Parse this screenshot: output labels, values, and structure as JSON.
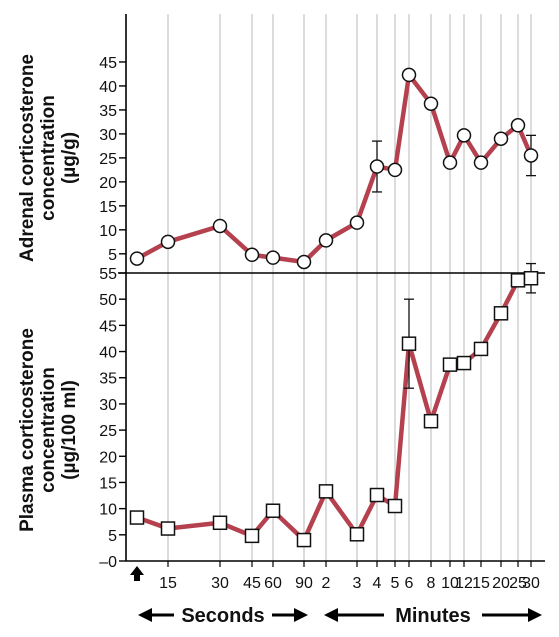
{
  "chart_data": [
    {
      "type": "line",
      "panel": "top",
      "ylabel_lines": [
        "Adrenal corticosterone",
        "concentration",
        "(µg/g)"
      ],
      "yticks": [
        5,
        10,
        15,
        20,
        25,
        30,
        35,
        40,
        45
      ],
      "ylim": [
        1,
        55
      ],
      "series": [
        {
          "marker": "circle",
          "color": "#b5414f",
          "points": [
            {
              "x": "0",
              "y": 4
            },
            {
              "x": "15",
              "y": 7.5
            },
            {
              "x": "30",
              "y": 10.8
            },
            {
              "x": "45",
              "y": 4.8
            },
            {
              "x": "60",
              "y": 4.2
            },
            {
              "x": "90",
              "y": 3.3
            },
            {
              "x": "2",
              "y": 7.8
            },
            {
              "x": "3",
              "y": 11.5
            },
            {
              "x": "4",
              "y": 23.2,
              "err": 5.3
            },
            {
              "x": "5",
              "y": 22.5
            },
            {
              "x": "6",
              "y": 42.3
            },
            {
              "x": "8",
              "y": 36.3
            },
            {
              "x": "10",
              "y": 24
            },
            {
              "x": "12",
              "y": 29.7
            },
            {
              "x": "15m",
              "y": 24
            },
            {
              "x": "20",
              "y": 29
            },
            {
              "x": "25",
              "y": 31.8
            },
            {
              "x": "30",
              "y": 25.5,
              "err": 4.2
            }
          ]
        }
      ]
    },
    {
      "type": "line",
      "panel": "bottom",
      "ylabel_lines": [
        "Plasma corticosterone",
        "concentration",
        "(µg/100 ml)"
      ],
      "yticks": [
        0,
        5,
        10,
        15,
        20,
        25,
        30,
        35,
        40,
        45,
        50,
        55
      ],
      "ytick_labels": [
        "–0",
        "5",
        "10",
        "15",
        "20",
        "25",
        "30",
        "35",
        "40",
        "45",
        "50",
        "55"
      ],
      "ylim": [
        0,
        55
      ],
      "series": [
        {
          "marker": "square",
          "color": "#b5414f",
          "points": [
            {
              "x": "0",
              "y": 8.3
            },
            {
              "x": "15",
              "y": 6.2
            },
            {
              "x": "30",
              "y": 7.3
            },
            {
              "x": "45",
              "y": 4.8
            },
            {
              "x": "60",
              "y": 9.6
            },
            {
              "x": "90",
              "y": 4
            },
            {
              "x": "2",
              "y": 13.3
            },
            {
              "x": "3",
              "y": 5.1
            },
            {
              "x": "4",
              "y": 12.6
            },
            {
              "x": "5",
              "y": 10.5
            },
            {
              "x": "6",
              "y": 41.5,
              "err": 8.5
            },
            {
              "x": "8",
              "y": 26.7
            },
            {
              "x": "10",
              "y": 37.5
            },
            {
              "x": "12",
              "y": 37.8
            },
            {
              "x": "15m",
              "y": 40.5
            },
            {
              "x": "20",
              "y": 47.3
            },
            {
              "x": "25",
              "y": 53.6
            },
            {
              "x": "30",
              "y": 54,
              "err": 2.8
            }
          ]
        }
      ]
    }
  ],
  "x_axis": {
    "ticks": [
      {
        "key": "15",
        "label": "15"
      },
      {
        "key": "30",
        "label": "30"
      },
      {
        "key": "45",
        "label": "45"
      },
      {
        "key": "60",
        "label": "60"
      },
      {
        "key": "90",
        "label": "90"
      },
      {
        "key": "2",
        "label": "2"
      },
      {
        "key": "3",
        "label": "3"
      },
      {
        "key": "4",
        "label": "4"
      },
      {
        "key": "5",
        "label": "5"
      },
      {
        "key": "6",
        "label": "6"
      },
      {
        "key": "8",
        "label": "8"
      },
      {
        "key": "10",
        "label": "10"
      },
      {
        "key": "12",
        "label": "12"
      },
      {
        "key": "15m",
        "label": "15"
      },
      {
        "key": "20",
        "label": "20"
      },
      {
        "key": "25",
        "label": "25"
      },
      {
        "key": "30",
        "label": "30"
      }
    ],
    "seconds_label": "Seconds",
    "minutes_label": "Minutes",
    "start_marker": "up-arrow-icon"
  },
  "colors": {
    "series": "#b5414f",
    "grid": "#b9b9b9",
    "axis": "#000000"
  }
}
